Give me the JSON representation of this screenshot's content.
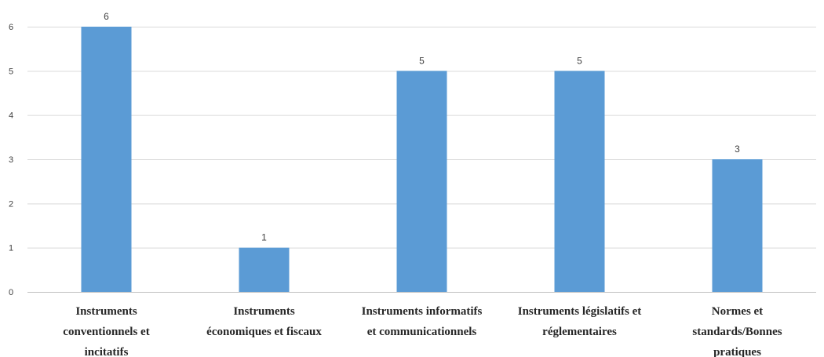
{
  "chart_data": {
    "type": "bar",
    "title": "",
    "xlabel": "",
    "ylabel": "",
    "categories": [
      [
        "Instruments",
        "conventionnels et",
        "incitatifs"
      ],
      [
        "Instruments",
        "économiques et fiscaux"
      ],
      [
        "Instruments informatifs",
        "et communicationnels"
      ],
      [
        "Instruments législatifs et",
        "réglementaires"
      ],
      [
        "Normes et",
        "standards/Bonnes",
        "pratiques"
      ]
    ],
    "values": [
      6,
      1,
      5,
      5,
      3
    ],
    "ylim": [
      0,
      6
    ],
    "yticks": [
      0,
      1,
      2,
      3,
      4,
      5,
      6
    ],
    "grid": true,
    "legend": "none",
    "bar_color": "#5b9bd5"
  }
}
